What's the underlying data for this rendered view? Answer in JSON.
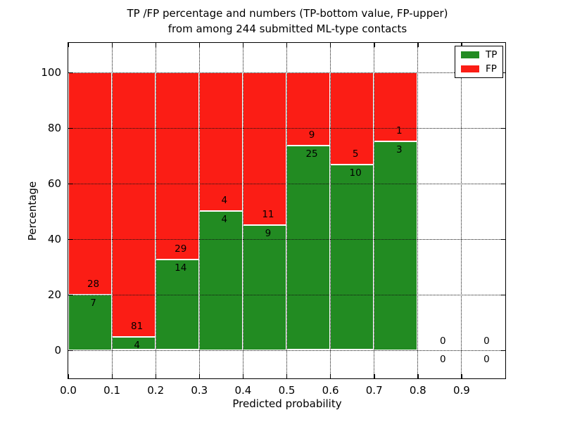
{
  "title": {
    "line1": "TP /FP percentage and numbers (TP-bottom value, FP-upper)",
    "line2": "from among 244 submitted ML-type contacts"
  },
  "axes": {
    "xlabel": "Predicted probability",
    "ylabel": "Percentage",
    "xtick_labels": [
      "0.0",
      "0.1",
      "0.2",
      "0.3",
      "0.4",
      "0.5",
      "0.6",
      "0.7",
      "0.8",
      "0.9"
    ],
    "ytick_labels": [
      "0",
      "20",
      "40",
      "60",
      "80",
      "100"
    ]
  },
  "legend": {
    "entries": [
      {
        "label": "TP",
        "color": "#228b22"
      },
      {
        "label": "FP",
        "color": "#fb1d15"
      }
    ]
  },
  "chart_data": {
    "type": "bar",
    "stacked": true,
    "normalized_to_percent": true,
    "title": "TP /FP percentage and numbers (TP-bottom value, FP-upper) from among 244 submitted ML-type contacts",
    "xlabel": "Predicted probability",
    "ylabel": "Percentage",
    "xlim": [
      0.0,
      1.0
    ],
    "ylim": [
      -11,
      111
    ],
    "xticks": [
      0.0,
      0.1,
      0.2,
      0.3,
      0.4,
      0.5,
      0.6,
      0.7,
      0.8,
      0.9
    ],
    "yticks": [
      0,
      20,
      40,
      60,
      80,
      100
    ],
    "grid": "dotted",
    "legend_position": "upper right",
    "bar_width": 0.1,
    "total_contacts": 244,
    "bin_edges": [
      0.0,
      0.1,
      0.2,
      0.3,
      0.4,
      0.5,
      0.6,
      0.7,
      0.8,
      0.9,
      1.0
    ],
    "series": [
      {
        "name": "TP",
        "color": "#228b22",
        "counts": [
          7,
          4,
          14,
          4,
          9,
          25,
          10,
          3,
          0,
          0
        ]
      },
      {
        "name": "FP",
        "color": "#fb1d15",
        "counts": [
          28,
          81,
          29,
          4,
          11,
          9,
          5,
          1,
          0,
          0
        ]
      }
    ],
    "tp_percent_by_bin": [
      20.0,
      4.7,
      32.6,
      50.0,
      45.0,
      73.5,
      66.7,
      75.0,
      null,
      null
    ]
  }
}
